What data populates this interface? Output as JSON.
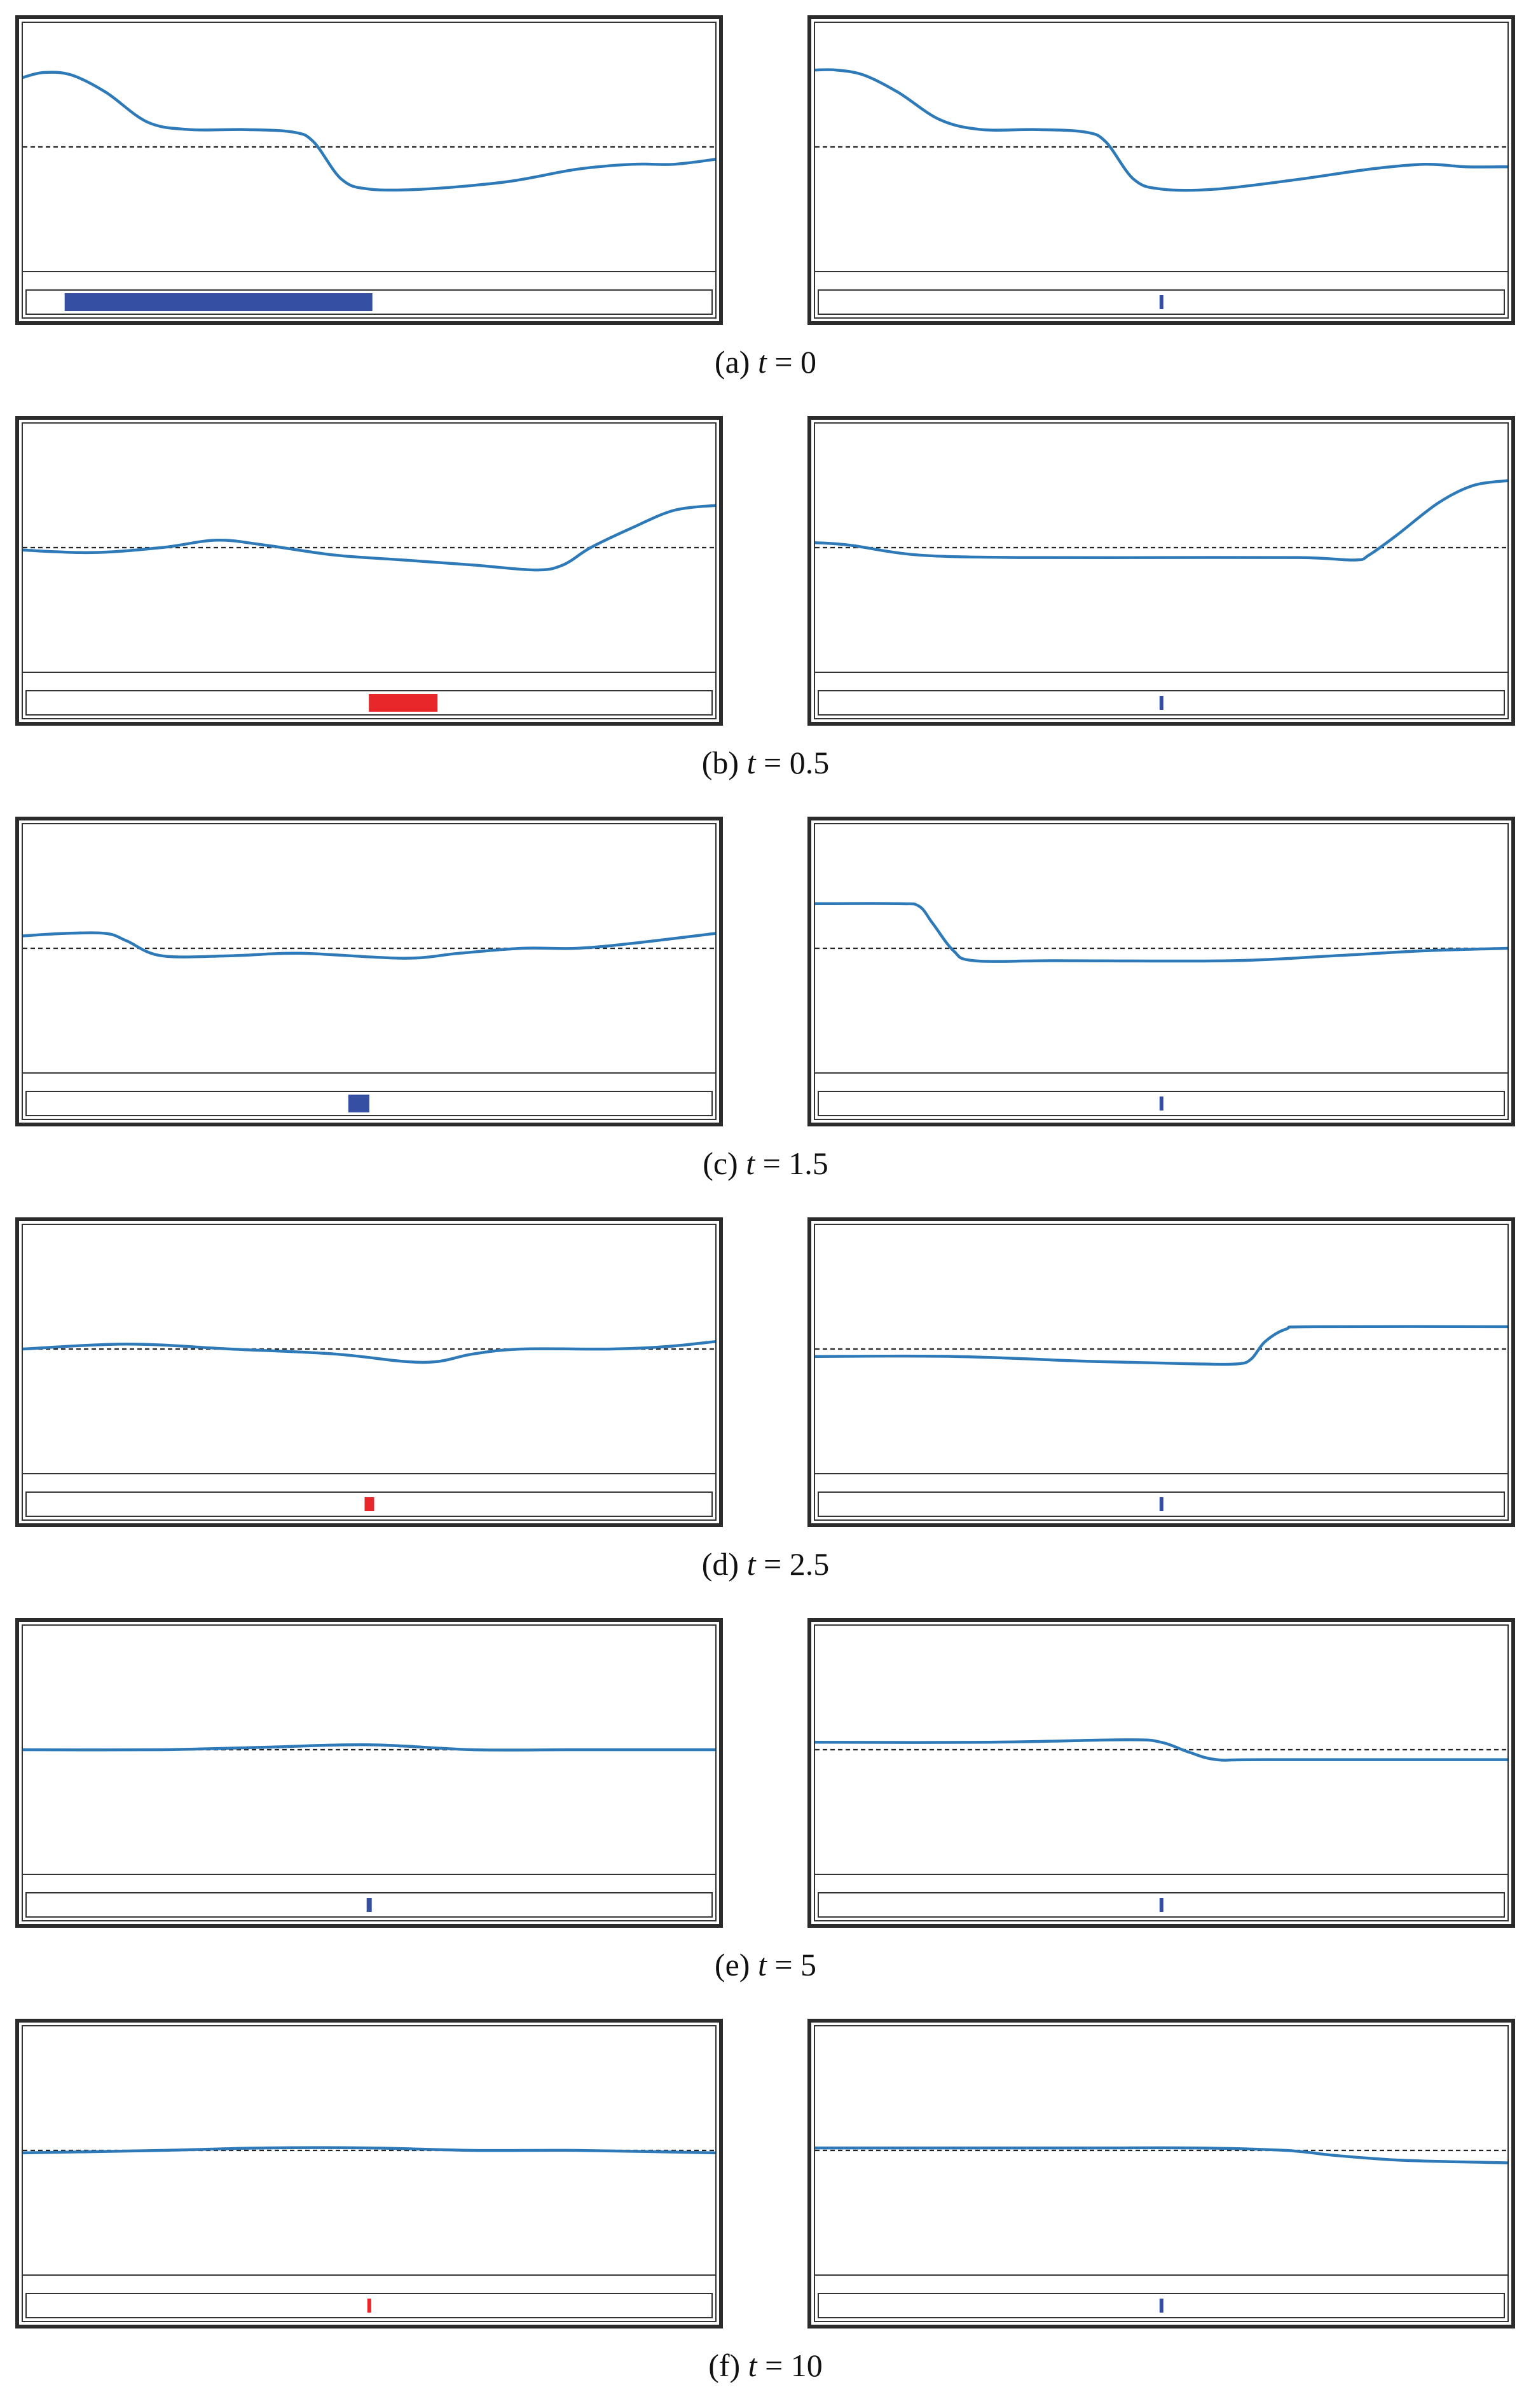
{
  "colors": {
    "profile": "#2e7ab8",
    "reference": "#222222",
    "marker_blue": "#3550a3",
    "marker_red": "#e8272a",
    "frame": "#2b2b2b"
  },
  "chart_data": {
    "type": "line",
    "x_domain": [
      0,
      1
    ],
    "y_domain": [
      0,
      1
    ],
    "reference_level": 0.5,
    "rows": [
      {
        "label": "(a)",
        "t": "0",
        "left": {
          "profile": [
            [
              0,
              0.78
            ],
            [
              0.03,
              0.8
            ],
            [
              0.07,
              0.79
            ],
            [
              0.12,
              0.72
            ],
            [
              0.18,
              0.6
            ],
            [
              0.24,
              0.57
            ],
            [
              0.32,
              0.57
            ],
            [
              0.39,
              0.56
            ],
            [
              0.42,
              0.52
            ],
            [
              0.46,
              0.37
            ],
            [
              0.5,
              0.33
            ],
            [
              0.58,
              0.33
            ],
            [
              0.7,
              0.36
            ],
            [
              0.8,
              0.41
            ],
            [
              0.88,
              0.43
            ],
            [
              0.94,
              0.43
            ],
            [
              1.0,
              0.45
            ]
          ],
          "control": {
            "color": "blue",
            "center": 0.28,
            "width": 0.45
          }
        },
        "right": {
          "profile": [
            [
              0,
              0.81
            ],
            [
              0.03,
              0.81
            ],
            [
              0.07,
              0.79
            ],
            [
              0.12,
              0.72
            ],
            [
              0.18,
              0.61
            ],
            [
              0.24,
              0.57
            ],
            [
              0.32,
              0.57
            ],
            [
              0.39,
              0.56
            ],
            [
              0.42,
              0.52
            ],
            [
              0.46,
              0.37
            ],
            [
              0.5,
              0.33
            ],
            [
              0.58,
              0.33
            ],
            [
              0.7,
              0.37
            ],
            [
              0.8,
              0.41
            ],
            [
              0.88,
              0.43
            ],
            [
              0.94,
              0.42
            ],
            [
              1.0,
              0.42
            ]
          ],
          "control": {
            "color": "blue",
            "center": 0.5,
            "width": 0.006
          }
        }
      },
      {
        "label": "(b)",
        "t": "0.5",
        "left": {
          "profile": [
            [
              0,
              0.49
            ],
            [
              0.1,
              0.48
            ],
            [
              0.2,
              0.5
            ],
            [
              0.28,
              0.53
            ],
            [
              0.35,
              0.51
            ],
            [
              0.45,
              0.47
            ],
            [
              0.55,
              0.45
            ],
            [
              0.65,
              0.43
            ],
            [
              0.74,
              0.41
            ],
            [
              0.78,
              0.43
            ],
            [
              0.82,
              0.5
            ],
            [
              0.88,
              0.58
            ],
            [
              0.94,
              0.65
            ],
            [
              1.0,
              0.67
            ]
          ],
          "control": {
            "color": "red",
            "center": 0.55,
            "width": 0.1
          }
        },
        "right": {
          "profile": [
            [
              0,
              0.52
            ],
            [
              0.05,
              0.51
            ],
            [
              0.15,
              0.47
            ],
            [
              0.3,
              0.46
            ],
            [
              0.5,
              0.46
            ],
            [
              0.7,
              0.46
            ],
            [
              0.78,
              0.45
            ],
            [
              0.8,
              0.47
            ],
            [
              0.84,
              0.55
            ],
            [
              0.9,
              0.68
            ],
            [
              0.95,
              0.75
            ],
            [
              1.0,
              0.77
            ]
          ],
          "control": {
            "color": "blue",
            "center": 0.5,
            "width": 0.006
          }
        }
      },
      {
        "label": "(c)",
        "t": "1.5",
        "left": {
          "profile": [
            [
              0,
              0.55
            ],
            [
              0.06,
              0.56
            ],
            [
              0.12,
              0.56
            ],
            [
              0.15,
              0.53
            ],
            [
              0.2,
              0.47
            ],
            [
              0.3,
              0.47
            ],
            [
              0.4,
              0.48
            ],
            [
              0.55,
              0.46
            ],
            [
              0.63,
              0.48
            ],
            [
              0.72,
              0.5
            ],
            [
              0.8,
              0.5
            ],
            [
              0.88,
              0.52
            ],
            [
              1.0,
              0.56
            ]
          ],
          "control": {
            "color": "blue",
            "center": 0.485,
            "width": 0.03
          }
        },
        "right": {
          "profile": [
            [
              0,
              0.68
            ],
            [
              0.12,
              0.68
            ],
            [
              0.15,
              0.67
            ],
            [
              0.17,
              0.6
            ],
            [
              0.2,
              0.49
            ],
            [
              0.23,
              0.45
            ],
            [
              0.35,
              0.45
            ],
            [
              0.6,
              0.45
            ],
            [
              0.75,
              0.47
            ],
            [
              0.88,
              0.49
            ],
            [
              1.0,
              0.5
            ]
          ],
          "control": {
            "color": "blue",
            "center": 0.5,
            "width": 0.006
          }
        }
      },
      {
        "label": "(d)",
        "t": "2.5",
        "left": {
          "profile": [
            [
              0,
              0.5
            ],
            [
              0.15,
              0.52
            ],
            [
              0.3,
              0.5
            ],
            [
              0.45,
              0.48
            ],
            [
              0.55,
              0.45
            ],
            [
              0.6,
              0.45
            ],
            [
              0.65,
              0.48
            ],
            [
              0.72,
              0.5
            ],
            [
              0.85,
              0.5
            ],
            [
              0.93,
              0.51
            ],
            [
              1.0,
              0.53
            ]
          ],
          "control": {
            "color": "red",
            "center": 0.5,
            "width": 0.014
          }
        },
        "right": {
          "profile": [
            [
              0,
              0.47
            ],
            [
              0.2,
              0.47
            ],
            [
              0.4,
              0.45
            ],
            [
              0.55,
              0.44
            ],
            [
              0.61,
              0.44
            ],
            [
              0.63,
              0.46
            ],
            [
              0.65,
              0.53
            ],
            [
              0.68,
              0.58
            ],
            [
              0.72,
              0.59
            ],
            [
              1.0,
              0.59
            ]
          ],
          "control": {
            "color": "blue",
            "center": 0.5,
            "width": 0.006
          }
        }
      },
      {
        "label": "(e)",
        "t": "5",
        "left": {
          "profile": [
            [
              0,
              0.5
            ],
            [
              0.2,
              0.5
            ],
            [
              0.35,
              0.51
            ],
            [
              0.5,
              0.52
            ],
            [
              0.65,
              0.5
            ],
            [
              0.8,
              0.5
            ],
            [
              1.0,
              0.5
            ]
          ],
          "control": {
            "color": "blue",
            "center": 0.5,
            "width": 0.008
          }
        },
        "right": {
          "profile": [
            [
              0,
              0.53
            ],
            [
              0.25,
              0.53
            ],
            [
              0.45,
              0.54
            ],
            [
              0.5,
              0.53
            ],
            [
              0.54,
              0.49
            ],
            [
              0.58,
              0.46
            ],
            [
              0.65,
              0.46
            ],
            [
              1.0,
              0.46
            ]
          ],
          "control": {
            "color": "blue",
            "center": 0.5,
            "width": 0.006
          }
        }
      },
      {
        "label": "(f)",
        "t": "10",
        "left": {
          "profile": [
            [
              0,
              0.49
            ],
            [
              0.2,
              0.5
            ],
            [
              0.35,
              0.51
            ],
            [
              0.5,
              0.51
            ],
            [
              0.65,
              0.5
            ],
            [
              0.8,
              0.5
            ],
            [
              1.0,
              0.49
            ]
          ],
          "control": {
            "color": "red",
            "center": 0.5,
            "width": 0.006
          }
        },
        "right": {
          "profile": [
            [
              0,
              0.51
            ],
            [
              0.2,
              0.51
            ],
            [
              0.4,
              0.51
            ],
            [
              0.55,
              0.51
            ],
            [
              0.68,
              0.5
            ],
            [
              0.75,
              0.48
            ],
            [
              0.85,
              0.46
            ],
            [
              1.0,
              0.45
            ]
          ],
          "control": {
            "color": "blue",
            "center": 0.5,
            "width": 0.006
          }
        }
      }
    ]
  }
}
